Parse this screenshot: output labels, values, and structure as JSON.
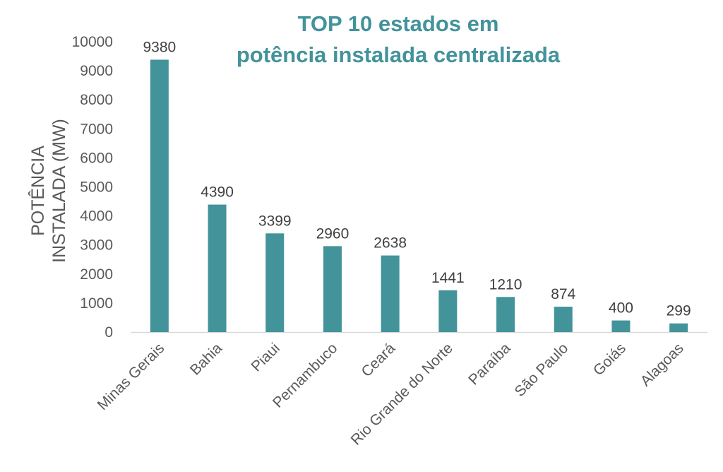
{
  "chart_data": {
    "type": "bar",
    "title_lines": [
      "TOP 10 estados em",
      "potência instalada centralizada"
    ],
    "ylabel_lines": [
      "POTÊNCIA",
      "INSTALADA (MW)"
    ],
    "xlabel": "",
    "categories": [
      "Minas Gerais",
      "Bahia",
      "Piaui",
      "Pernambuco",
      "Ceará",
      "Rio Grande do Norte",
      "Paraíba",
      "São Paulo",
      "Goiás",
      "Alagoas"
    ],
    "values": [
      9380,
      4390,
      3399,
      2960,
      2638,
      1441,
      1210,
      874,
      400,
      299
    ],
    "data_labels": [
      "9380",
      "4390",
      "3399",
      "2960",
      "2638",
      "1441",
      "1210",
      "874",
      "400",
      "299"
    ],
    "ylim": [
      0,
      10000
    ],
    "yticks": [
      "0",
      "1000",
      "2000",
      "3000",
      "4000",
      "5000",
      "6000",
      "7000",
      "8000",
      "9000",
      "10000"
    ],
    "grid": false,
    "legend": "none",
    "colors": {
      "bar": "#43939A",
      "title": "#43939A",
      "axis_line": "#D9D9D9"
    }
  }
}
